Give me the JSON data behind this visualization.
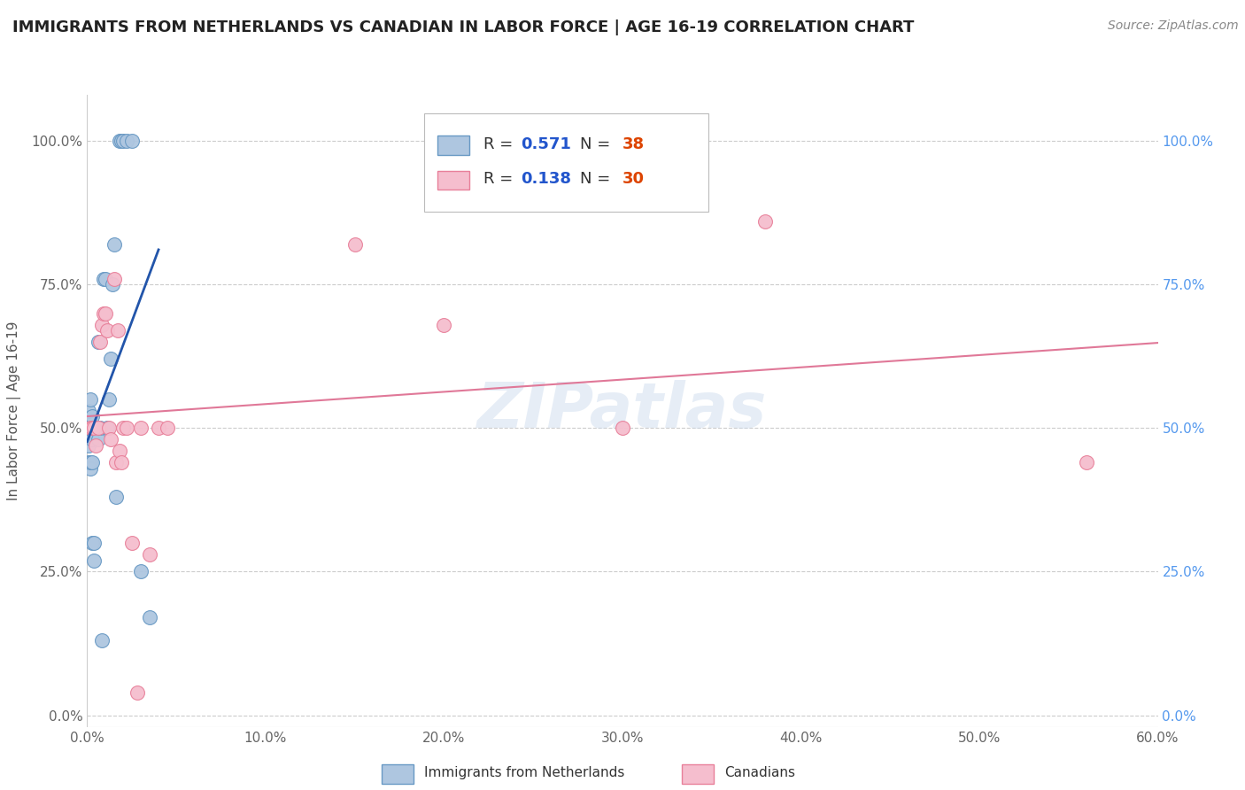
{
  "title": "IMMIGRANTS FROM NETHERLANDS VS CANADIAN IN LABOR FORCE | AGE 16-19 CORRELATION CHART",
  "source": "Source: ZipAtlas.com",
  "ylabel": "In Labor Force | Age 16-19",
  "xlim": [
    0.0,
    0.6
  ],
  "ylim": [
    -0.02,
    1.08
  ],
  "xtick_vals": [
    0.0,
    0.1,
    0.2,
    0.3,
    0.4,
    0.5,
    0.6
  ],
  "xtick_labels": [
    "0.0%",
    "10.0%",
    "20.0%",
    "30.0%",
    "40.0%",
    "50.0%",
    "60.0%"
  ],
  "ytick_vals": [
    0.0,
    0.25,
    0.5,
    0.75,
    1.0
  ],
  "ytick_labels": [
    "0.0%",
    "25.0%",
    "50.0%",
    "75.0%",
    "100.0%"
  ],
  "blue_color": "#aec6e0",
  "blue_edge_color": "#6899c4",
  "pink_color": "#f5bece",
  "pink_edge_color": "#e8809a",
  "trend_blue_color": "#2255aa",
  "trend_pink_color": "#e07898",
  "R_blue": 0.571,
  "N_blue": 38,
  "R_pink": 0.138,
  "N_pink": 30,
  "legend_label_blue": "Immigrants from Netherlands",
  "legend_label_pink": "Canadians",
  "watermark": "ZIPatlas",
  "blue_x": [
    0.001,
    0.001,
    0.001,
    0.001,
    0.002,
    0.002,
    0.002,
    0.002,
    0.002,
    0.003,
    0.003,
    0.003,
    0.003,
    0.003,
    0.004,
    0.004,
    0.004,
    0.005,
    0.005,
    0.006,
    0.006,
    0.007,
    0.008,
    0.009,
    0.01,
    0.011,
    0.012,
    0.013,
    0.014,
    0.015,
    0.016,
    0.018,
    0.019,
    0.02,
    0.022,
    0.025,
    0.03,
    0.035
  ],
  "blue_y": [
    0.44,
    0.47,
    0.5,
    0.53,
    0.43,
    0.44,
    0.5,
    0.5,
    0.55,
    0.3,
    0.44,
    0.48,
    0.5,
    0.52,
    0.27,
    0.3,
    0.5,
    0.5,
    0.5,
    0.48,
    0.65,
    0.5,
    0.13,
    0.76,
    0.76,
    0.5,
    0.55,
    0.62,
    0.75,
    0.82,
    0.38,
    1.0,
    1.0,
    1.0,
    1.0,
    1.0,
    0.25,
    0.17
  ],
  "pink_x": [
    0.002,
    0.003,
    0.004,
    0.005,
    0.006,
    0.007,
    0.008,
    0.009,
    0.01,
    0.011,
    0.012,
    0.013,
    0.015,
    0.016,
    0.017,
    0.018,
    0.019,
    0.02,
    0.022,
    0.025,
    0.028,
    0.03,
    0.035,
    0.04,
    0.045,
    0.15,
    0.2,
    0.3,
    0.38,
    0.56
  ],
  "pink_y": [
    0.5,
    0.5,
    0.5,
    0.47,
    0.5,
    0.65,
    0.68,
    0.7,
    0.7,
    0.67,
    0.5,
    0.48,
    0.76,
    0.44,
    0.67,
    0.46,
    0.44,
    0.5,
    0.5,
    0.3,
    0.04,
    0.5,
    0.28,
    0.5,
    0.5,
    0.82,
    0.68,
    0.5,
    0.86,
    0.44
  ]
}
